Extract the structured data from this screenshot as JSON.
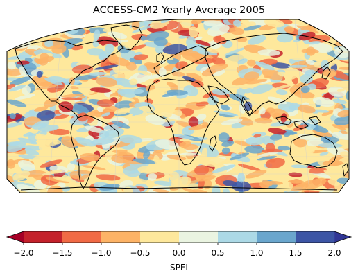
{
  "map": {
    "title": "ACCESS-CM2 Yearly Average 2005",
    "projection": "Robinson",
    "variable": "SPEI",
    "year": "2005"
  },
  "colorbar": {
    "label": "SPEI",
    "ticks": [
      "−2.0",
      "−1.5",
      "−1.0",
      "−0.5",
      "0.0",
      "0.5",
      "1.0",
      "1.5",
      "2.0"
    ],
    "tick_values": [
      -2.0,
      -1.5,
      -1.0,
      -0.5,
      0.0,
      0.5,
      1.0,
      1.5,
      2.0
    ],
    "extend": "both",
    "bins": [
      {
        "min": -2.0,
        "max": -1.5,
        "color": "#c4212b"
      },
      {
        "min": -1.5,
        "max": -1.0,
        "color": "#f16a45"
      },
      {
        "min": -1.0,
        "max": -0.5,
        "color": "#fdb366"
      },
      {
        "min": -0.5,
        "max": 0.0,
        "color": "#fee89c"
      },
      {
        "min": 0.0,
        "max": 0.5,
        "color": "#eaf4e1"
      },
      {
        "min": 0.5,
        "max": 1.0,
        "color": "#acd9e6"
      },
      {
        "min": 1.0,
        "max": 1.5,
        "color": "#6aa6cd"
      },
      {
        "min": 1.5,
        "max": 2.0,
        "color": "#3c55a5"
      }
    ],
    "under_color": "#a50026",
    "over_color": "#313695"
  }
}
